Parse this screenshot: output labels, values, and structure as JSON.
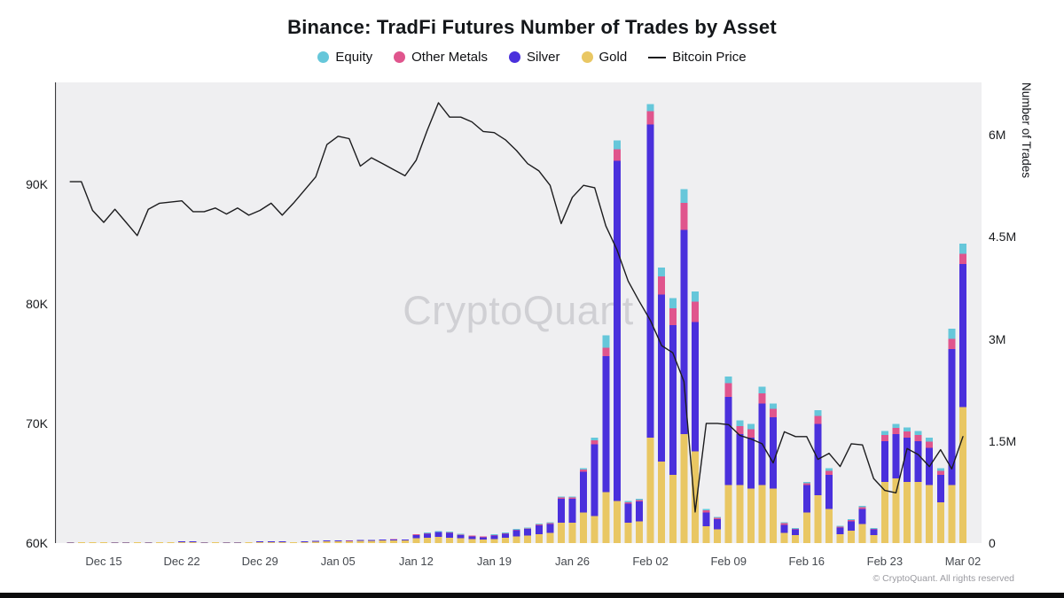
{
  "title": "Binance: TradFi Futures Number of Trades by Asset",
  "watermark": "CryptoQuant",
  "footer": "© CryptoQuant. All rights reserved",
  "legend": [
    {
      "label": "Equity",
      "color": "#66c7da",
      "marker": "dot"
    },
    {
      "label": "Other Metals",
      "color": "#e0558d",
      "marker": "dot"
    },
    {
      "label": "Silver",
      "color": "#4a30dc",
      "marker": "dot"
    },
    {
      "label": "Gold",
      "color": "#e9c763",
      "marker": "dot"
    },
    {
      "label": "Bitcoin Price",
      "color": "#1c1c1e",
      "marker": "line"
    }
  ],
  "chart_data": {
    "type": "stacked_bar_with_line",
    "x_ticks": [
      {
        "label": "Dec 15",
        "day": 3
      },
      {
        "label": "Dec 22",
        "day": 10
      },
      {
        "label": "Dec 29",
        "day": 17
      },
      {
        "label": "Jan 05",
        "day": 24
      },
      {
        "label": "Jan 12",
        "day": 31
      },
      {
        "label": "Jan 19",
        "day": 38
      },
      {
        "label": "Jan 26",
        "day": 45
      },
      {
        "label": "Feb 02",
        "day": 52
      },
      {
        "label": "Feb 09",
        "day": 59
      },
      {
        "label": "Feb 16",
        "day": 66
      },
      {
        "label": "Feb 23",
        "day": 73
      },
      {
        "label": "Mar 02",
        "day": 80
      }
    ],
    "left_axis": {
      "unit": "K",
      "range": [
        60,
        98.5
      ],
      "ticks": [
        {
          "label": "60K",
          "value": 60
        },
        {
          "label": "70K",
          "value": 70
        },
        {
          "label": "80K",
          "value": 80
        },
        {
          "label": "90K",
          "value": 90
        }
      ]
    },
    "right_axis": {
      "title": "Number of Trades",
      "range": [
        0,
        6.77
      ],
      "ticks": [
        {
          "label": "0",
          "value": 0
        },
        {
          "label": "1.5M",
          "value": 1.5
        },
        {
          "label": "3M",
          "value": 3
        },
        {
          "label": "4.5M",
          "value": 4.5
        },
        {
          "label": "6M",
          "value": 6
        }
      ]
    },
    "series_unit": "millions of trades",
    "series": [
      {
        "name": "Gold",
        "color": "#e9c763",
        "values": [
          0.003,
          0.004,
          0.004,
          0.005,
          0.008,
          0.008,
          0.01,
          0.008,
          0.01,
          0.006,
          0.012,
          0.012,
          0.008,
          0.005,
          0.008,
          0.008,
          0.006,
          0.012,
          0.016,
          0.012,
          0.01,
          0.016,
          0.02,
          0.024,
          0.024,
          0.028,
          0.03,
          0.035,
          0.04,
          0.04,
          0.038,
          0.07,
          0.08,
          0.09,
          0.08,
          0.07,
          0.06,
          0.05,
          0.06,
          0.08,
          0.1,
          0.11,
          0.13,
          0.15,
          0.3,
          0.3,
          0.45,
          0.4,
          0.75,
          0.62,
          0.3,
          0.32,
          1.55,
          1.2,
          1.0,
          1.6,
          1.35,
          0.25,
          0.2,
          0.85,
          0.85,
          0.8,
          0.85,
          0.8,
          0.15,
          0.12,
          0.45,
          0.7,
          0.5,
          0.13,
          0.18,
          0.28,
          0.12,
          0.9,
          0.95,
          0.9,
          0.9,
          0.85,
          0.6,
          0.85,
          2.0
        ]
      },
      {
        "name": "Silver",
        "color": "#4a30dc",
        "values": [
          0.001,
          0.001,
          0.001,
          0.0,
          0.002,
          0.002,
          0.002,
          0.002,
          0.002,
          0.002,
          0.003,
          0.003,
          0.002,
          0.001,
          0.002,
          0.002,
          0.002,
          0.003,
          0.004,
          0.003,
          0.002,
          0.004,
          0.005,
          0.006,
          0.006,
          0.007,
          0.01,
          0.01,
          0.012,
          0.015,
          0.012,
          0.045,
          0.06,
          0.07,
          0.07,
          0.05,
          0.035,
          0.035,
          0.05,
          0.06,
          0.09,
          0.1,
          0.13,
          0.13,
          0.35,
          0.35,
          0.6,
          1.05,
          2.0,
          5.0,
          0.28,
          0.29,
          4.6,
          2.45,
          2.2,
          3.0,
          1.9,
          0.2,
          0.15,
          1.3,
          0.75,
          0.75,
          1.2,
          1.05,
          0.12,
          0.08,
          0.4,
          1.05,
          0.5,
          0.1,
          0.14,
          0.22,
          0.08,
          0.6,
          0.65,
          0.65,
          0.6,
          0.55,
          0.4,
          2.0,
          2.1
        ]
      },
      {
        "name": "Other Metals",
        "color": "#e0558d",
        "values": [
          0,
          0,
          0,
          0,
          0,
          0,
          0,
          0,
          0,
          0,
          0,
          0,
          0,
          0,
          0,
          0,
          0,
          0,
          0,
          0,
          0,
          0,
          0,
          0,
          0,
          0.001,
          0.001,
          0.002,
          0.002,
          0.002,
          0.002,
          0.003,
          0.006,
          0.006,
          0.006,
          0.006,
          0.003,
          0.003,
          0.006,
          0.006,
          0.006,
          0.006,
          0.012,
          0.01,
          0.02,
          0.02,
          0.03,
          0.06,
          0.12,
          0.17,
          0.02,
          0.02,
          0.2,
          0.27,
          0.25,
          0.4,
          0.3,
          0.03,
          0.02,
          0.2,
          0.12,
          0.12,
          0.15,
          0.12,
          0.02,
          0.01,
          0.03,
          0.12,
          0.06,
          0.01,
          0.02,
          0.03,
          0.01,
          0.09,
          0.09,
          0.09,
          0.09,
          0.09,
          0.06,
          0.15,
          0.15
        ]
      },
      {
        "name": "Equity",
        "color": "#66c7da",
        "values": [
          0,
          0,
          0,
          0,
          0,
          0,
          0,
          0,
          0,
          0,
          0,
          0,
          0,
          0,
          0,
          0,
          0,
          0,
          0,
          0,
          0,
          0,
          0,
          0,
          0,
          0,
          0,
          0,
          0.001,
          0.001,
          0.001,
          0.002,
          0.004,
          0.004,
          0.004,
          0.004,
          0.002,
          0.002,
          0.004,
          0.004,
          0.004,
          0.004,
          0.008,
          0.01,
          0.01,
          0.01,
          0.02,
          0.04,
          0.18,
          0.13,
          0.02,
          0.02,
          0.1,
          0.13,
          0.15,
          0.2,
          0.15,
          0.02,
          0.01,
          0.1,
          0.08,
          0.08,
          0.1,
          0.08,
          0.01,
          0.01,
          0.02,
          0.08,
          0.04,
          0.01,
          0.01,
          0.02,
          0.01,
          0.06,
          0.06,
          0.06,
          0.06,
          0.06,
          0.04,
          0.15,
          0.15
        ]
      }
    ],
    "bitcoin_price": {
      "name": "Bitcoin Price",
      "color": "#1c1c1e",
      "unit": "K",
      "values": [
        90.2,
        90.2,
        87.8,
        86.8,
        87.9,
        86.8,
        85.7,
        87.9,
        88.4,
        88.5,
        88.6,
        87.7,
        87.7,
        88.0,
        87.5,
        88.0,
        87.4,
        87.8,
        88.4,
        87.4,
        88.4,
        89.5,
        90.6,
        93.3,
        94.0,
        93.8,
        91.5,
        92.2,
        91.7,
        91.2,
        90.7,
        92.0,
        94.5,
        96.8,
        95.6,
        95.6,
        95.2,
        94.4,
        94.3,
        93.7,
        92.8,
        91.7,
        91.1,
        89.9,
        86.7,
        88.9,
        89.9,
        89.7,
        86.5,
        84.5,
        81.9,
        80.2,
        78.6,
        76.5,
        75.9,
        73.5,
        62.6,
        70.0,
        70.0,
        69.9,
        69.0,
        68.7,
        68.3,
        66.7,
        69.3,
        68.9,
        68.9,
        67.0,
        67.5,
        66.4,
        68.3,
        68.2,
        65.4,
        64.4,
        64.2,
        67.9,
        67.4,
        66.4,
        67.8,
        66.2,
        68.9
      ]
    }
  }
}
